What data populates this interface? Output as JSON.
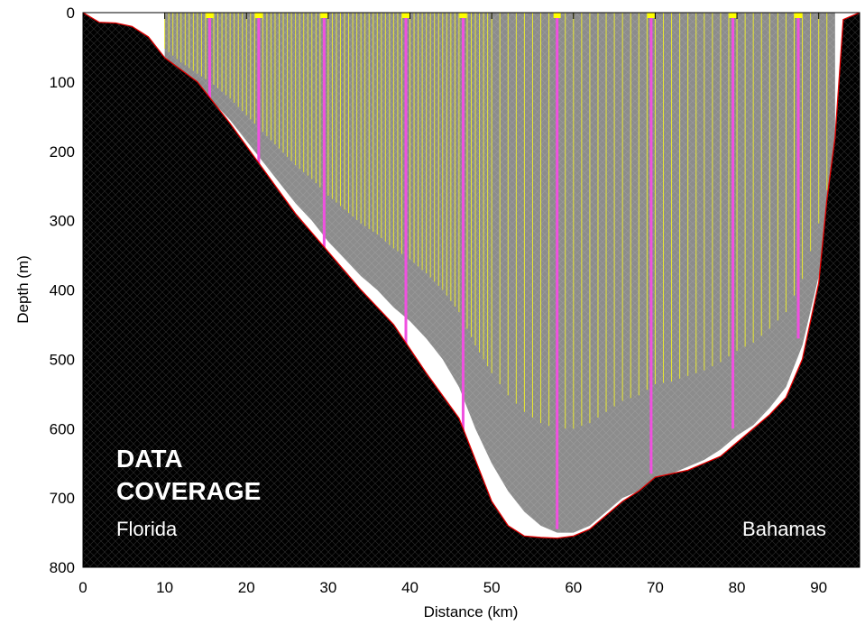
{
  "chart_data": {
    "type": "area",
    "xlabel": "Distance (km)",
    "ylabel": "Depth (m)",
    "xlim": [
      0,
      95
    ],
    "ylim": [
      0,
      800
    ],
    "y_inverted": true,
    "xticks": [
      0,
      10,
      20,
      30,
      40,
      50,
      60,
      70,
      80,
      90
    ],
    "yticks": [
      0,
      100,
      200,
      300,
      400,
      500,
      600,
      700,
      800
    ],
    "grid": false,
    "annotations": {
      "title_line1": "DATA",
      "title_line2": "COVERAGE",
      "left_label": "Florida",
      "right_label": "Bahamas"
    },
    "colors": {
      "seafloor": "#000000",
      "coverage_area": "#8c8c8c",
      "bathymetry_line": "#e00000",
      "profile_lines": "#e8e830",
      "station_lines": "#f050e0",
      "surface_marks": "#ffff00"
    },
    "bathymetry": {
      "x": [
        0,
        2,
        4,
        6,
        8,
        10,
        14,
        18,
        22,
        26,
        30,
        34,
        38,
        42,
        46,
        50,
        52,
        54,
        56,
        58,
        60,
        62,
        64,
        66,
        68,
        70,
        72,
        74,
        76,
        78,
        80,
        82,
        84,
        86,
        88,
        90,
        91,
        92,
        93,
        95
      ],
      "depth": [
        0,
        14,
        15,
        20,
        35,
        65,
        100,
        160,
        225,
        290,
        345,
        400,
        450,
        520,
        585,
        705,
        740,
        755,
        757,
        758,
        755,
        745,
        725,
        705,
        690,
        670,
        665,
        660,
        650,
        640,
        620,
        600,
        580,
        555,
        500,
        390,
        270,
        180,
        10,
        0
      ]
    },
    "coverage_bottom": {
      "x": [
        10,
        12,
        14,
        16,
        18,
        20,
        22,
        24,
        26,
        28,
        30,
        32,
        34,
        36,
        38,
        40,
        42,
        44,
        46,
        48,
        50,
        52,
        54,
        56,
        58,
        60,
        62,
        64,
        66,
        68,
        70,
        72,
        74,
        76,
        78,
        80,
        82,
        84,
        86,
        88,
        90,
        92
      ],
      "depth": [
        65,
        90,
        110,
        130,
        155,
        185,
        215,
        245,
        275,
        300,
        330,
        355,
        380,
        400,
        425,
        445,
        470,
        500,
        540,
        600,
        650,
        690,
        720,
        740,
        750,
        750,
        740,
        720,
        700,
        690,
        670,
        665,
        655,
        645,
        630,
        610,
        595,
        570,
        540,
        480,
        380,
        260
      ]
    },
    "profiles_x": [
      10,
      10.5,
      11,
      11.5,
      12,
      12.5,
      13,
      13.5,
      14,
      14.5,
      15,
      15.5,
      16,
      16.5,
      17,
      17.5,
      18,
      18.5,
      19,
      19.5,
      20,
      20.5,
      21,
      21.5,
      22,
      22.5,
      23,
      23.5,
      24,
      24.5,
      25,
      25.5,
      26,
      26.5,
      27,
      27.5,
      28,
      28.5,
      29,
      29.5,
      30,
      30.5,
      31,
      31.5,
      32,
      32.5,
      33,
      33.5,
      34,
      34.5,
      35,
      35.5,
      36,
      36.5,
      37,
      37.5,
      38,
      38.5,
      39,
      39.5,
      40,
      40.5,
      41,
      41.5,
      42,
      42.5,
      43,
      43.5,
      44,
      44.5,
      45,
      45.5,
      46,
      46.5,
      47,
      47.5,
      48,
      48.5,
      49,
      49.5,
      50,
      51,
      52,
      53,
      54,
      55,
      56,
      57,
      58,
      59,
      60,
      61,
      62,
      63,
      64,
      65,
      66,
      67,
      68,
      69,
      70,
      71,
      72,
      73,
      74,
      75,
      76,
      77,
      78,
      79,
      80,
      81,
      82,
      83,
      84,
      85,
      86,
      87,
      88,
      89,
      90,
      91
    ],
    "profile_depth_fraction": 0.8,
    "stations": [
      {
        "x": 15.5,
        "depth": 130
      },
      {
        "x": 21.5,
        "depth": 250
      },
      {
        "x": 29.5,
        "depth": 365
      },
      {
        "x": 39.5,
        "depth": 510
      },
      {
        "x": 46.5,
        "depth": 640
      },
      {
        "x": 58.0,
        "depth": 745
      },
      {
        "x": 69.5,
        "depth": 665
      },
      {
        "x": 79.5,
        "depth": 600
      },
      {
        "x": 87.5,
        "depth": 470
      }
    ]
  }
}
